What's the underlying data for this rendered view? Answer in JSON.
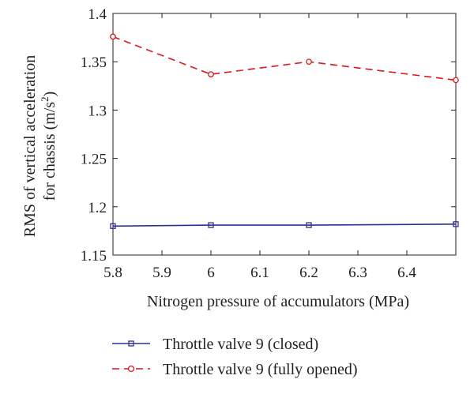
{
  "chart_data": {
    "type": "line",
    "xlabel": "Nitrogen pressure of accumulators (MPa)",
    "ylabel_line1": "RMS of vertical acceleration",
    "ylabel_line2_prefix": "for chassis (m/s",
    "ylabel_line2_sup": "2",
    "ylabel_line2_suffix": ")",
    "xlim": [
      5.8,
      6.5
    ],
    "ylim": [
      1.15,
      1.4
    ],
    "x_ticks": [
      5.8,
      5.9,
      6.0,
      6.1,
      6.2,
      6.3,
      6.4
    ],
    "x_tick_labels": [
      "5.8",
      "5.9",
      "6",
      "6.1",
      "6.2",
      "6.3",
      "6.4"
    ],
    "y_ticks": [
      1.15,
      1.2,
      1.25,
      1.3,
      1.35,
      1.4
    ],
    "y_tick_labels": [
      "1.15",
      "1.2",
      "1.25",
      "1.3",
      "1.35",
      "1.4"
    ],
    "grid": false,
    "legend_position": "bottom",
    "x": [
      5.8,
      6.0,
      6.2,
      6.5
    ],
    "series": [
      {
        "name": "Throttle valve 9 (closed)",
        "values": [
          1.18,
          1.181,
          1.181,
          1.182
        ],
        "color": "#2e3192",
        "marker": "square",
        "dash": "solid"
      },
      {
        "name": "Throttle valve 9 (fully opened)",
        "values": [
          1.376,
          1.337,
          1.35,
          1.331
        ],
        "color": "#d7191c",
        "marker": "circle",
        "dash": "dashed"
      }
    ]
  }
}
